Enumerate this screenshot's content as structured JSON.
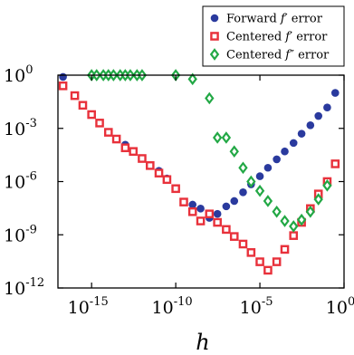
{
  "chart_data": {
    "type": "scatter",
    "title": "",
    "xlabel": "h",
    "ylabel": "",
    "x_scale": "log",
    "y_scale": "log",
    "xlim": [
      1e-17,
      1
    ],
    "ylim": [
      1e-12,
      1
    ],
    "x_ticks": [
      {
        "value": 1e-15,
        "base": "10",
        "exp": "-15"
      },
      {
        "value": 1e-10,
        "base": "10",
        "exp": "-10"
      },
      {
        "value": 1e-05,
        "base": "10",
        "exp": "-5"
      },
      {
        "value": 1,
        "base": "10",
        "exp": "0"
      }
    ],
    "y_ticks": [
      {
        "value": 1e-12,
        "base": "10",
        "exp": "-12"
      },
      {
        "value": 1e-09,
        "base": "10",
        "exp": "-9"
      },
      {
        "value": 1e-06,
        "base": "10",
        "exp": "-6"
      },
      {
        "value": 0.001,
        "base": "10",
        "exp": "-3"
      },
      {
        "value": 1,
        "base": "10",
        "exp": "0"
      }
    ],
    "grid": false,
    "legend_position": "top-right",
    "series": [
      {
        "name": "Forward f′ error",
        "legend_prefix": "Forward ",
        "legend_var": "f",
        "legend_primes": "′",
        "legend_suffix": " error",
        "color": "#2a3a9e",
        "marker": "circle",
        "x": [
          2e-17,
          1e-16,
          3e-16,
          1e-15,
          3e-15,
          1e-14,
          3e-14,
          1e-13,
          3e-13,
          1e-12,
          3e-12,
          1e-11,
          3e-11,
          1e-10,
          3e-10,
          1e-09,
          3e-09,
          1e-08,
          3e-08,
          1e-07,
          3e-07,
          1e-06,
          3e-06,
          1e-05,
          3e-05,
          0.0001,
          0.0003,
          0.001,
          0.003,
          0.01,
          0.03,
          0.1,
          0.3
        ],
        "y": [
          0.8,
          0.07,
          0.02,
          0.006,
          0.002,
          0.0006,
          0.00025,
          0.00012,
          5e-05,
          2e-05,
          8e-06,
          4e-06,
          1.5e-06,
          4e-07,
          7e-08,
          5e-08,
          3e-08,
          9e-09,
          1.5e-08,
          4e-08,
          8e-08,
          2.5e-07,
          7e-07,
          2e-06,
          6e-06,
          1.8e-05,
          5e-05,
          0.00015,
          0.0005,
          0.0015,
          0.005,
          0.015,
          0.1
        ]
      },
      {
        "name": "Centered f′ error",
        "legend_prefix": "Centered ",
        "legend_var": "f",
        "legend_primes": "′",
        "legend_suffix": " error",
        "color": "#e8313b",
        "marker": "square",
        "x": [
          2e-17,
          1e-16,
          3e-16,
          1e-15,
          3e-15,
          1e-14,
          3e-14,
          1e-13,
          3e-13,
          1e-12,
          3e-12,
          1e-11,
          3e-11,
          1e-10,
          3e-10,
          1e-09,
          3e-09,
          1e-08,
          3e-08,
          1e-07,
          3e-07,
          1e-06,
          3e-06,
          1e-05,
          3e-05,
          0.0001,
          0.0003,
          0.001,
          0.003,
          0.01,
          0.03,
          0.1,
          0.3
        ],
        "y": [
          0.25,
          0.07,
          0.02,
          0.006,
          0.002,
          0.0006,
          0.00025,
          8e-05,
          5e-05,
          2e-05,
          8e-06,
          3e-06,
          1.3e-06,
          4e-07,
          7e-08,
          2e-08,
          6e-09,
          1.5e-08,
          5e-09,
          2e-09,
          8e-10,
          3e-10,
          1e-10,
          3e-11,
          1e-11,
          3e-11,
          1.5e-10,
          9e-10,
          5e-09,
          3e-08,
          2e-07,
          1e-06,
          1e-05
        ]
      },
      {
        "name": "Centered f″ error",
        "legend_prefix": "Centered ",
        "legend_var": "f",
        "legend_primes": "″",
        "legend_suffix": " error",
        "color": "#22a845",
        "marker": "diamond",
        "x": [
          1e-15,
          2e-15,
          5e-15,
          1e-14,
          2e-14,
          5e-14,
          1e-13,
          2e-13,
          5e-13,
          1e-12,
          1e-10,
          1e-09,
          1e-08,
          3e-08,
          1e-07,
          3e-07,
          1e-06,
          3e-06,
          1e-05,
          3e-05,
          0.0001,
          0.0003,
          0.001,
          0.003,
          0.01,
          0.03,
          0.1
        ],
        "y": [
          1,
          1,
          1,
          1,
          1,
          1,
          1,
          1,
          1,
          1,
          1,
          0.6,
          0.05,
          0.0003,
          0.0003,
          5e-05,
          6e-06,
          1e-06,
          3e-07,
          8e-08,
          2e-08,
          6e-09,
          3e-09,
          7e-09,
          2e-08,
          1e-07,
          6e-07
        ]
      }
    ]
  }
}
